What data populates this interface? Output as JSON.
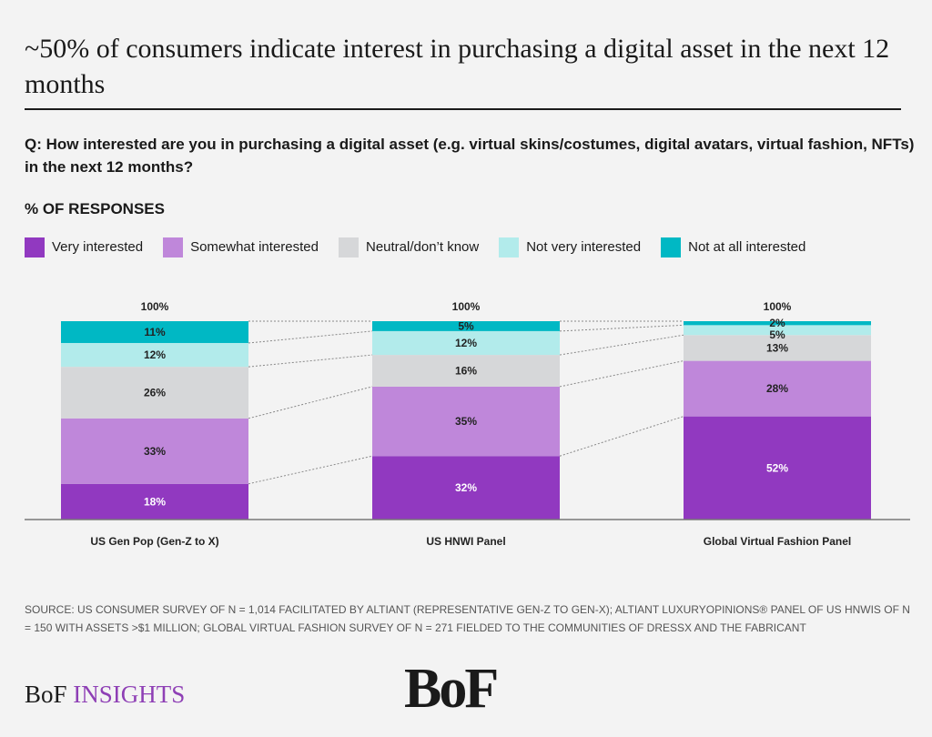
{
  "title": "~50% of consumers indicate interest in purchasing a digital asset in the next 12 months",
  "question": "Q: How interested are you in purchasing a digital asset (e.g. virtual skins/costumes, digital avatars, virtual fashion, NFTs) in the next 12 months?",
  "source": "SOURCE: US CONSUMER SURVEY OF N = 1,014 FACILITATED BY ALTIANT (REPRESENTATIVE GEN-Z TO GEN-X); ALTIANT LUXURYOPINIONS® PANEL OF US HNWIS OF N = 150 WITH ASSETS >$1 MILLION; GLOBAL VIRTUAL FASHION SURVEY OF N = 271 FIELDED TO THE COMMUNITIES OF DRESSX AND THE FABRICANT",
  "footer": {
    "brand_left": "BoF",
    "brand_right": "INSIGHTS",
    "logo": "BoF"
  },
  "chart_data": {
    "type": "bar",
    "stacked": true,
    "ylabel": "% OF RESPONSES",
    "legend_position": "top-left",
    "categories": [
      "US Gen Pop (Gen-Z to X)",
      "US HNWI Panel",
      "Global Virtual Fashion Panel"
    ],
    "totals": [
      "100%",
      "100%",
      "100%"
    ],
    "series": [
      {
        "name": "Very interested",
        "color": "#9139c0",
        "values": [
          18,
          32,
          52
        ]
      },
      {
        "name": "Somewhat interested",
        "color": "#bf87da",
        "values": [
          33,
          35,
          28
        ]
      },
      {
        "name": "Neutral/don’t know",
        "color": "#d6d7d9",
        "values": [
          26,
          16,
          13
        ]
      },
      {
        "name": "Not very interested",
        "color": "#b2ebeb",
        "values": [
          12,
          12,
          5
        ]
      },
      {
        "name": "Not at all interested",
        "color": "#00b8c4",
        "values": [
          11,
          5,
          2
        ]
      }
    ]
  }
}
